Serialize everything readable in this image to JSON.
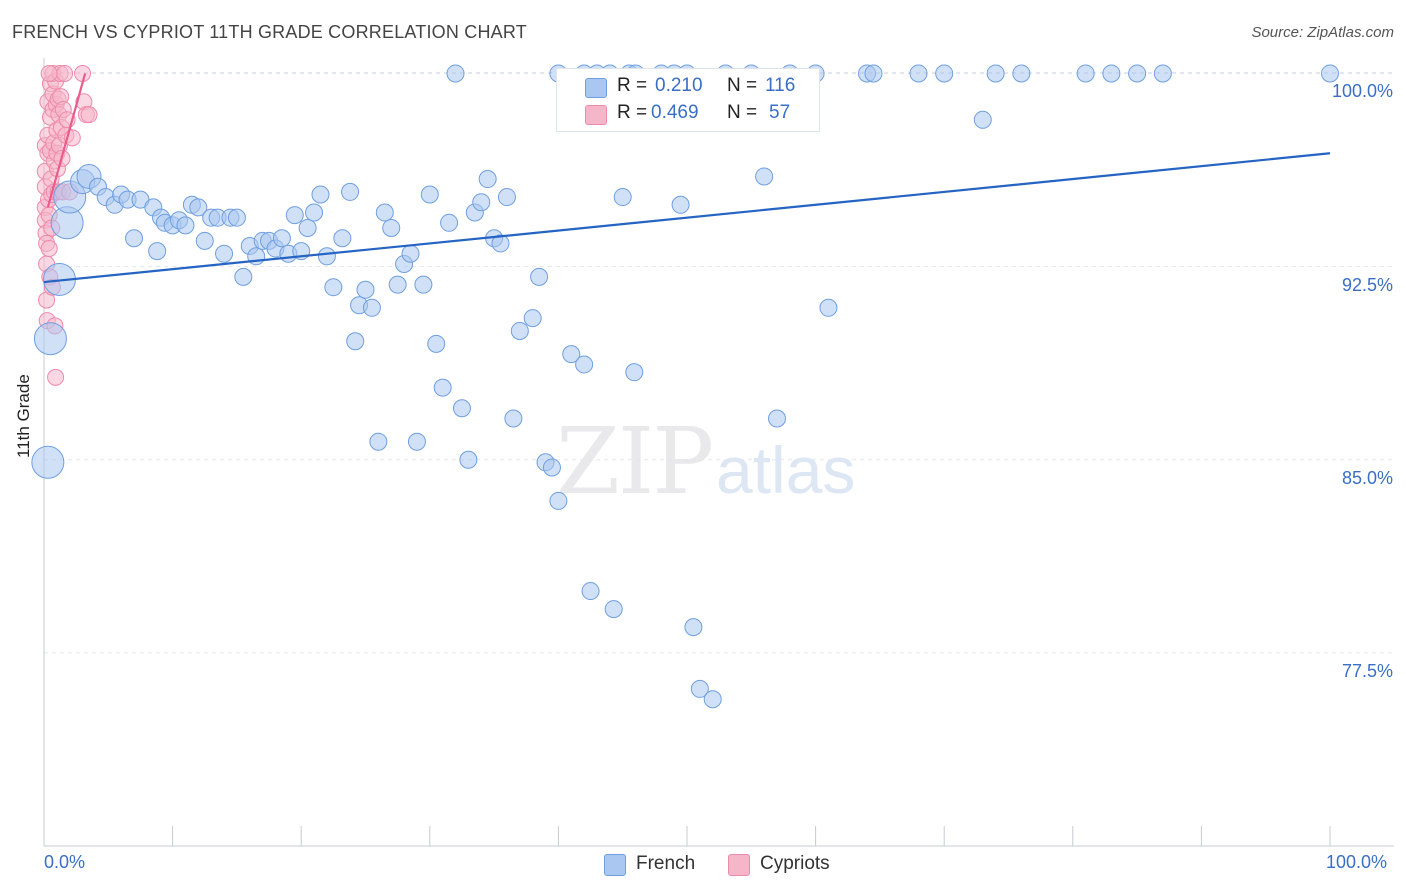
{
  "title": "FRENCH VS CYPRIOT 11TH GRADE CORRELATION CHART",
  "source": "Source: ZipAtlas.com",
  "watermark": {
    "zip": "ZIP",
    "atlas": "atlas"
  },
  "colors": {
    "french_fill": "#a9c7f0",
    "french_stroke": "#6f9fe0",
    "french_line": "#2563c4",
    "cypriot_fill": "#f6b6ca",
    "cypriot_stroke": "#ee8aab",
    "cypriot_line": "#e85d8c",
    "axis_text": "#3a6fc4",
    "grid": "#e3e6ec"
  },
  "legend": {
    "rows": [
      {
        "r_label": "R = ",
        "r_value": "0.210",
        "n_label": "N = ",
        "n_value": "116"
      },
      {
        "r_label": "R = ",
        "r_value": "0.469",
        "n_label": "N = ",
        "n_value": "57"
      }
    ]
  },
  "bottom_legend": [
    "French",
    "Cypriots"
  ],
  "chart_data": {
    "type": "scatter",
    "title": "FRENCH VS CYPRIOT 11TH GRADE CORRELATION CHART",
    "xlabel": "",
    "ylabel": "11th Grade",
    "xlim": [
      0,
      100
    ],
    "ylim": [
      70.0,
      100.6
    ],
    "x_tick_labels": [
      "0.0%",
      "100.0%"
    ],
    "y_ticks": [
      100.0,
      92.5,
      85.0,
      77.5
    ],
    "y_tick_labels": [
      "100.0%",
      "92.5%",
      "85.0%",
      "77.5%"
    ],
    "series": [
      {
        "name": "French",
        "R": 0.21,
        "N": 116,
        "trend": {
          "x": [
            0,
            100
          ],
          "y": [
            91.9,
            96.9
          ]
        },
        "points": [
          [
            0.3,
            84.9,
            3
          ],
          [
            0.5,
            89.7,
            3
          ],
          [
            1.2,
            92.0,
            3
          ],
          [
            1.8,
            94.2,
            3
          ],
          [
            2.0,
            95.2,
            3
          ],
          [
            3.0,
            95.8,
            2
          ],
          [
            3.5,
            96.0,
            2
          ],
          [
            4.2,
            95.6,
            1
          ],
          [
            4.8,
            95.2,
            1
          ],
          [
            5.5,
            94.9,
            1
          ],
          [
            6.0,
            95.3,
            1
          ],
          [
            6.5,
            95.1,
            1
          ],
          [
            7.0,
            93.6,
            1
          ],
          [
            7.5,
            95.1,
            1
          ],
          [
            8.5,
            94.8,
            1
          ],
          [
            8.8,
            93.1,
            1
          ],
          [
            9.1,
            94.4,
            1
          ],
          [
            9.4,
            94.2,
            1
          ],
          [
            10.0,
            94.1,
            1
          ],
          [
            10.5,
            94.3,
            1
          ],
          [
            11.0,
            94.1,
            1
          ],
          [
            11.5,
            94.9,
            1
          ],
          [
            12.0,
            94.8,
            1
          ],
          [
            12.5,
            93.5,
            1
          ],
          [
            13.0,
            94.4,
            1
          ],
          [
            13.5,
            94.4,
            1
          ],
          [
            14.0,
            93.0,
            1
          ],
          [
            14.5,
            94.4,
            1
          ],
          [
            15.0,
            94.4,
            1
          ],
          [
            15.5,
            92.1,
            1
          ],
          [
            16.0,
            93.3,
            1
          ],
          [
            16.5,
            92.9,
            1
          ],
          [
            17.0,
            93.5,
            1
          ],
          [
            17.5,
            93.5,
            1
          ],
          [
            18.0,
            93.2,
            1
          ],
          [
            18.5,
            93.6,
            1
          ],
          [
            19.0,
            93.0,
            1
          ],
          [
            19.5,
            94.5,
            1
          ],
          [
            20.0,
            93.1,
            1
          ],
          [
            20.5,
            94.0,
            1
          ],
          [
            21.0,
            94.6,
            1
          ],
          [
            21.5,
            95.3,
            1
          ],
          [
            22.0,
            92.9,
            1
          ],
          [
            22.5,
            91.7,
            1
          ],
          [
            23.2,
            93.6,
            1
          ],
          [
            23.8,
            95.4,
            1
          ],
          [
            24.5,
            91.0,
            1
          ],
          [
            24.2,
            89.6,
            1
          ],
          [
            25.0,
            91.6,
            1
          ],
          [
            25.5,
            90.9,
            1
          ],
          [
            26.0,
            85.7,
            1
          ],
          [
            26.5,
            94.6,
            1
          ],
          [
            27.0,
            94.0,
            1
          ],
          [
            27.5,
            91.8,
            1
          ],
          [
            28.0,
            92.6,
            1
          ],
          [
            28.5,
            93.0,
            1
          ],
          [
            29.0,
            85.7,
            1
          ],
          [
            29.5,
            91.8,
            1
          ],
          [
            30.0,
            95.3,
            1
          ],
          [
            30.5,
            89.5,
            1
          ],
          [
            31.0,
            87.8,
            1
          ],
          [
            31.5,
            94.2,
            1
          ],
          [
            32.0,
            100.0,
            1
          ],
          [
            32.5,
            87.0,
            1
          ],
          [
            33.0,
            85.0,
            1
          ],
          [
            33.5,
            94.6,
            1
          ],
          [
            34.0,
            95.0,
            1
          ],
          [
            34.5,
            95.9,
            1
          ],
          [
            35.0,
            93.6,
            1
          ],
          [
            35.5,
            93.4,
            1
          ],
          [
            36.0,
            95.2,
            1
          ],
          [
            36.5,
            86.6,
            1
          ],
          [
            37.0,
            90.0,
            1
          ],
          [
            38.0,
            90.5,
            1
          ],
          [
            38.5,
            92.1,
            1
          ],
          [
            39.0,
            84.9,
            1
          ],
          [
            40.0,
            100.0,
            1
          ],
          [
            39.5,
            84.7,
            1
          ],
          [
            40.0,
            83.4,
            1
          ],
          [
            41.0,
            89.1,
            1
          ],
          [
            42.0,
            100.0,
            1
          ],
          [
            42.0,
            88.7,
            1
          ],
          [
            42.5,
            79.9,
            1
          ],
          [
            43.0,
            100.0,
            1
          ],
          [
            44.0,
            100.0,
            1
          ],
          [
            44.3,
            79.2,
            1
          ],
          [
            45.0,
            95.2,
            1
          ],
          [
            45.5,
            100.0,
            1
          ],
          [
            46.0,
            100.0,
            1
          ],
          [
            45.9,
            88.4,
            1
          ],
          [
            48.0,
            100.0,
            1
          ],
          [
            49.0,
            100.0,
            1
          ],
          [
            49.5,
            94.9,
            1
          ],
          [
            50.0,
            100.0,
            1
          ],
          [
            50.5,
            78.5,
            1
          ],
          [
            51.0,
            76.1,
            1
          ],
          [
            52.0,
            75.7,
            1
          ],
          [
            53.0,
            100.0,
            1
          ],
          [
            55.0,
            100.0,
            1
          ],
          [
            56.0,
            96.0,
            1
          ],
          [
            57.0,
            86.6,
            1
          ],
          [
            58.0,
            100.0,
            1
          ],
          [
            60.0,
            100.0,
            1
          ],
          [
            61.0,
            90.9,
            1
          ],
          [
            64.0,
            100.0,
            1
          ],
          [
            64.5,
            100.0,
            1
          ],
          [
            68.0,
            100.0,
            1
          ],
          [
            70.0,
            100.0,
            1
          ],
          [
            73.0,
            98.2,
            1
          ],
          [
            74.0,
            100.0,
            1
          ],
          [
            76.0,
            100.0,
            1
          ],
          [
            81.0,
            100.0,
            1
          ],
          [
            83.0,
            100.0,
            1
          ],
          [
            85.0,
            100.0,
            1
          ],
          [
            87.0,
            100.0,
            1
          ],
          [
            100.0,
            100.0,
            1
          ]
        ]
      },
      {
        "name": "Cypriots",
        "R": 0.469,
        "N": 57,
        "trend": {
          "x": [
            0.3,
            3.2
          ],
          "y": [
            94.8,
            100.0
          ]
        },
        "points": [
          [
            0.1,
            97.2
          ],
          [
            0.1,
            96.2
          ],
          [
            0.1,
            95.6
          ],
          [
            0.1,
            94.8
          ],
          [
            0.1,
            94.3
          ],
          [
            0.15,
            93.8
          ],
          [
            0.2,
            93.4
          ],
          [
            0.2,
            92.6
          ],
          [
            0.2,
            91.2
          ],
          [
            0.25,
            90.4
          ],
          [
            0.3,
            98.9
          ],
          [
            0.3,
            97.6
          ],
          [
            0.3,
            96.9
          ],
          [
            0.35,
            95.1
          ],
          [
            0.4,
            94.5
          ],
          [
            0.4,
            93.2
          ],
          [
            0.45,
            92.1
          ],
          [
            0.5,
            99.6
          ],
          [
            0.5,
            98.3
          ],
          [
            0.5,
            97.0
          ],
          [
            0.55,
            95.9
          ],
          [
            0.6,
            95.3
          ],
          [
            0.6,
            94.0
          ],
          [
            0.65,
            91.7
          ],
          [
            0.7,
            100.0
          ],
          [
            0.7,
            99.2
          ],
          [
            0.7,
            98.6
          ],
          [
            0.75,
            97.3
          ],
          [
            0.8,
            96.6
          ],
          [
            0.8,
            95.4
          ],
          [
            0.85,
            90.2
          ],
          [
            0.9,
            88.2
          ],
          [
            0.9,
            99.7
          ],
          [
            0.95,
            98.8
          ],
          [
            1.0,
            97.8
          ],
          [
            1.0,
            96.9
          ],
          [
            1.05,
            96.3
          ],
          [
            1.1,
            95.4
          ],
          [
            1.1,
            99.0
          ],
          [
            1.15,
            98.4
          ],
          [
            1.2,
            97.2
          ],
          [
            1.25,
            100.0
          ],
          [
            1.3,
            99.1
          ],
          [
            1.35,
            97.9
          ],
          [
            1.4,
            96.7
          ],
          [
            1.45,
            95.4
          ],
          [
            1.5,
            98.6
          ],
          [
            1.6,
            100.0
          ],
          [
            1.7,
            97.6
          ],
          [
            1.8,
            98.2
          ],
          [
            2.0,
            95.4
          ],
          [
            2.2,
            97.5
          ],
          [
            3.0,
            100.0
          ],
          [
            3.1,
            98.9
          ],
          [
            3.3,
            98.4
          ],
          [
            3.5,
            98.4
          ],
          [
            0.4,
            100.0
          ]
        ]
      }
    ]
  }
}
